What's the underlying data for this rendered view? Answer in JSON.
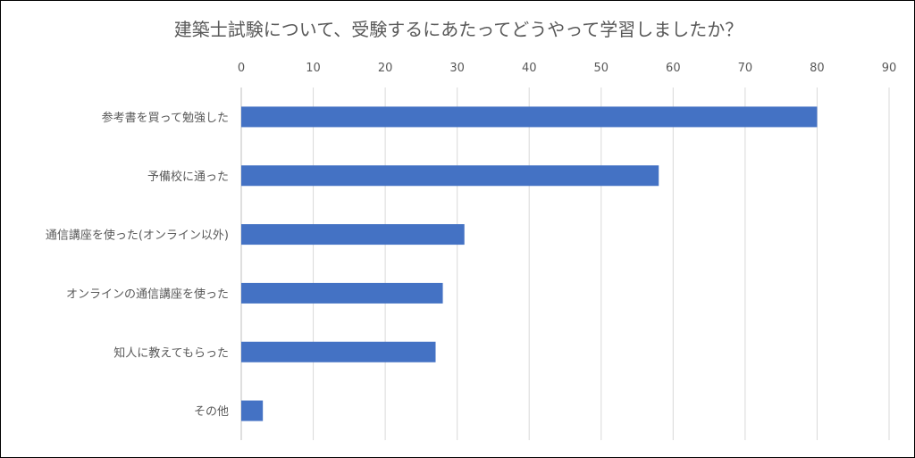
{
  "chart_data": {
    "type": "bar",
    "orientation": "horizontal",
    "title": "建築士試験について、受験するにあたってどうやって学習しましたか？",
    "categories": [
      "参考書を買って勉強した",
      "予備校に通った",
      "通信講座を使った(オンライン以外)",
      "オンラインの通信講座を使った",
      "知人に教えてもらった",
      "その他"
    ],
    "values": [
      80,
      58,
      31,
      28,
      27,
      3
    ],
    "xlim": [
      0,
      90
    ],
    "x_ticks": [
      0,
      10,
      20,
      30,
      40,
      50,
      60,
      70,
      80,
      90
    ],
    "x_axis_position": "top",
    "grid": true,
    "legend": "none",
    "bar_color": "#4472C4",
    "grid_color": "#D9D9D9"
  }
}
